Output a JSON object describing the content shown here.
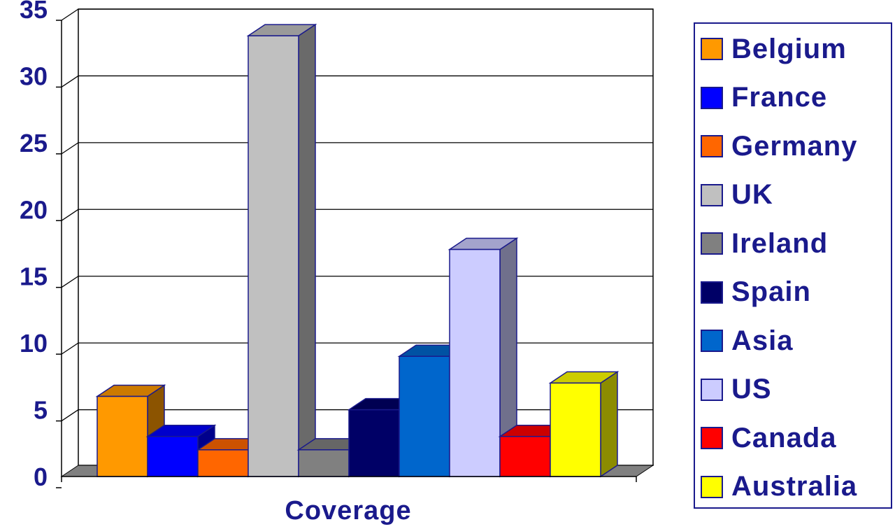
{
  "chart_data": {
    "type": "bar",
    "title": "",
    "xlabel": "Coverage",
    "ylabel": "",
    "categories": [
      "Coverage"
    ],
    "series": [
      {
        "name": "Belgium",
        "values": [
          6
        ],
        "color": "#ff9900"
      },
      {
        "name": "France",
        "values": [
          3
        ],
        "color": "#0000ff"
      },
      {
        "name": "Germany",
        "values": [
          2
        ],
        "color": "#ff6600"
      },
      {
        "name": "UK",
        "values": [
          33
        ],
        "color": "#c0c0c0"
      },
      {
        "name": "Ireland",
        "values": [
          2
        ],
        "color": "#808080"
      },
      {
        "name": "Spain",
        "values": [
          5
        ],
        "color": "#000066"
      },
      {
        "name": "Asia",
        "values": [
          9
        ],
        "color": "#0066cc"
      },
      {
        "name": "US",
        "values": [
          17
        ],
        "color": "#ccccff"
      },
      {
        "name": "Canada",
        "values": [
          3
        ],
        "color": "#ff0000"
      },
      {
        "name": "Australia",
        "values": [
          7
        ],
        "color": "#ffff00"
      }
    ],
    "ylim": [
      0,
      35
    ],
    "yticks": [
      "0",
      "5",
      "10",
      "15",
      "20",
      "25",
      "30",
      "35"
    ],
    "grid": true,
    "legend": "right",
    "style": "3d-bar"
  }
}
